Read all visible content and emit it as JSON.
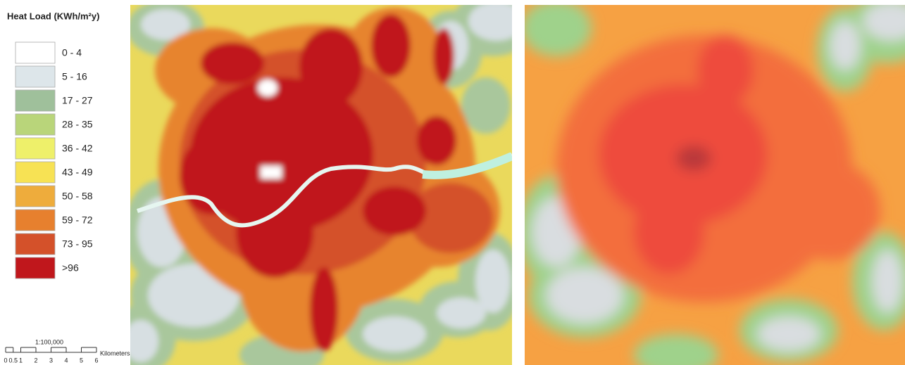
{
  "legend": {
    "title": "Heat Load (KWh/m²y)",
    "items": [
      {
        "label": "0 - 4",
        "color": "#ffffff"
      },
      {
        "label": "5 - 16",
        "color": "#dde6ea"
      },
      {
        "label": "17 - 27",
        "color": "#9fc09b"
      },
      {
        "label": "28 - 35",
        "color": "#b9d57a"
      },
      {
        "label": "36 - 42",
        "color": "#eef06a"
      },
      {
        "label": "43 - 49",
        "color": "#f7e254"
      },
      {
        "label": "50 - 58",
        "color": "#eeac3c"
      },
      {
        "label": "59 - 72",
        "color": "#e7802e"
      },
      {
        "label": "73 - 95",
        "color": "#d4512a"
      },
      {
        "label": ">96",
        "color": "#c0171c"
      }
    ]
  },
  "scale": {
    "ratio": "1:100,000",
    "unit": "Kilometers",
    "ticks": [
      0,
      0.5,
      1,
      2,
      3,
      4,
      5,
      6
    ]
  }
}
